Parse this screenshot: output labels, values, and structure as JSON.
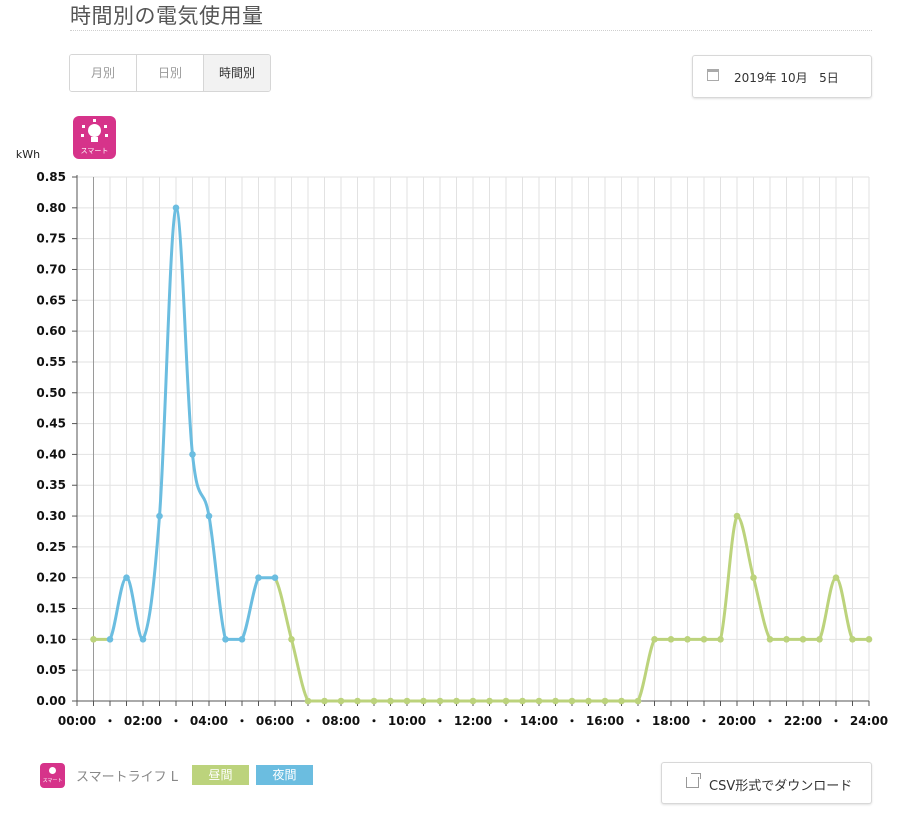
{
  "header": {
    "title": "時間別の電気使用量"
  },
  "tabs": [
    {
      "label": "月別",
      "active": false
    },
    {
      "label": "日別",
      "active": false
    },
    {
      "label": "時間別",
      "active": true
    }
  ],
  "date_picker": {
    "value": "2019年 10月   5日"
  },
  "plan_icon": {
    "label": "スマート"
  },
  "legend": {
    "plan_name": "スマートライフ L",
    "day_label": "昼間",
    "night_label": "夜間",
    "day_color": "#bcd37c",
    "night_color": "#6bbde0"
  },
  "csv_button": {
    "label": "CSV形式でダウンロード"
  },
  "chart_data": {
    "type": "line",
    "title": "",
    "ylabel": "kWh",
    "xlabel": "",
    "ylim": [
      0,
      0.85
    ],
    "xlim": [
      0,
      24
    ],
    "grid": true,
    "y_ticks": [
      "0.00",
      "0.05",
      "0.10",
      "0.15",
      "0.20",
      "0.25",
      "0.30",
      "0.35",
      "0.40",
      "0.45",
      "0.50",
      "0.55",
      "0.60",
      "0.65",
      "0.70",
      "0.75",
      "0.80",
      "0.85"
    ],
    "x_ticks": [
      {
        "x": 0,
        "label": "00:00"
      },
      {
        "x": 2,
        "label": "02:00"
      },
      {
        "x": 4,
        "label": "04:00"
      },
      {
        "x": 6,
        "label": "06:00"
      },
      {
        "x": 8,
        "label": "08:00"
      },
      {
        "x": 10,
        "label": "10:00"
      },
      {
        "x": 12,
        "label": "12:00"
      },
      {
        "x": 14,
        "label": "14:00"
      },
      {
        "x": 16,
        "label": "16:00"
      },
      {
        "x": 18,
        "label": "18:00"
      },
      {
        "x": 20,
        "label": "20:00"
      },
      {
        "x": 22,
        "label": "22:00"
      },
      {
        "x": 24,
        "label": "24:00"
      }
    ],
    "x_minor_ticks": [
      1,
      3,
      5,
      7,
      9,
      11,
      13,
      15,
      17,
      19,
      21,
      23
    ],
    "x_minor_label": "・",
    "x": [
      0.5,
      1,
      1.5,
      2,
      2.5,
      3,
      3.5,
      4,
      4.5,
      5,
      5.5,
      6,
      6.5,
      7,
      7.5,
      8,
      8.5,
      9,
      9.5,
      10,
      10.5,
      11,
      11.5,
      12,
      12.5,
      13,
      13.5,
      14,
      14.5,
      15,
      15.5,
      16,
      16.5,
      17,
      17.5,
      18,
      18.5,
      19,
      19.5,
      20,
      20.5,
      21,
      21.5,
      22,
      22.5,
      23,
      23.5,
      24
    ],
    "y": [
      0.1,
      0.1,
      0.2,
      0.1,
      0.3,
      0.8,
      0.4,
      0.3,
      0.1,
      0.1,
      0.2,
      0.2,
      0.1,
      0.0,
      0.0,
      0.0,
      0.0,
      0.0,
      0.0,
      0.0,
      0.0,
      0.0,
      0.0,
      0.0,
      0.0,
      0.0,
      0.0,
      0.0,
      0.0,
      0.0,
      0.0,
      0.0,
      0.0,
      0.0,
      0.1,
      0.1,
      0.1,
      0.1,
      0.1,
      0.3,
      0.2,
      0.1,
      0.1,
      0.1,
      0.1,
      0.2,
      0.1,
      0.1
    ],
    "night_range": [
      1,
      6
    ],
    "series": [
      {
        "name": "昼間",
        "color": "#bcd37c"
      },
      {
        "name": "夜間",
        "color": "#6bbde0"
      }
    ]
  }
}
